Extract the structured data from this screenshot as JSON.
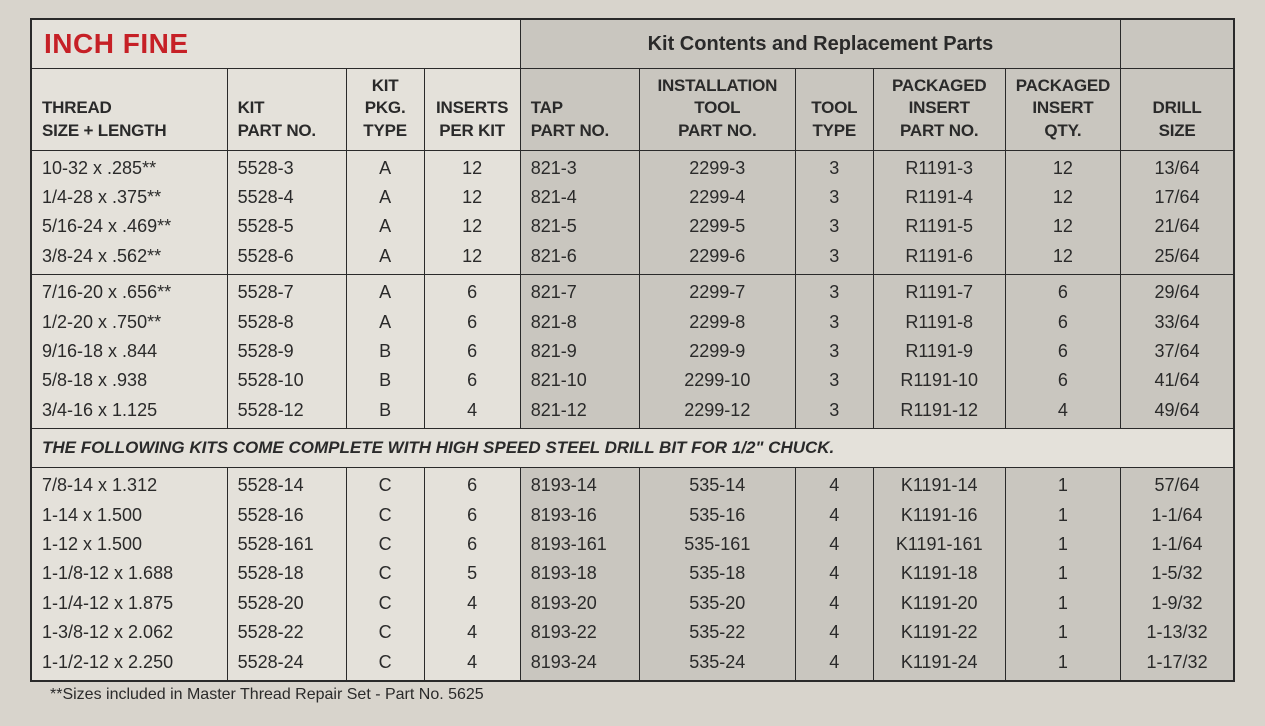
{
  "title": "INCH FINE",
  "kit_header": "Kit Contents and Replacement Parts",
  "columns": {
    "thread": "THREAD\nSIZE + LENGTH",
    "kitpart": "KIT\nPART NO.",
    "kitpkg": "KIT\nPKG.\nTYPE",
    "inserts": "INSERTS\nPER KIT",
    "tap": "TAP\nPART NO.",
    "install": "INSTALLATION\nTOOL\nPART NO.",
    "tooltype": "TOOL\nTYPE",
    "pkgins": "PACKAGED\nINSERT\nPART NO.",
    "pkgqty": "PACKAGED\nINSERT\nQTY.",
    "drill": "DRILL\nSIZE"
  },
  "group1": [
    {
      "thread": "10-32 x .285**",
      "kit": "5528-3",
      "pkg": "A",
      "ins": "12",
      "tap": "821-3",
      "inst": "2299-3",
      "tt": "3",
      "pins": "R1191-3",
      "pq": "12",
      "drill": "13/64"
    },
    {
      "thread": "1/4-28 x .375**",
      "kit": "5528-4",
      "pkg": "A",
      "ins": "12",
      "tap": "821-4",
      "inst": "2299-4",
      "tt": "3",
      "pins": "R1191-4",
      "pq": "12",
      "drill": "17/64"
    },
    {
      "thread": "5/16-24 x .469**",
      "kit": "5528-5",
      "pkg": "A",
      "ins": "12",
      "tap": "821-5",
      "inst": "2299-5",
      "tt": "3",
      "pins": "R1191-5",
      "pq": "12",
      "drill": "21/64"
    },
    {
      "thread": "3/8-24 x .562**",
      "kit": "5528-6",
      "pkg": "A",
      "ins": "12",
      "tap": "821-6",
      "inst": "2299-6",
      "tt": "3",
      "pins": "R1191-6",
      "pq": "12",
      "drill": "25/64"
    }
  ],
  "group2": [
    {
      "thread": "7/16-20 x .656**",
      "kit": "5528-7",
      "pkg": "A",
      "ins": "6",
      "tap": "821-7",
      "inst": "2299-7",
      "tt": "3",
      "pins": "R1191-7",
      "pq": "6",
      "drill": "29/64"
    },
    {
      "thread": "1/2-20 x .750**",
      "kit": "5528-8",
      "pkg": "A",
      "ins": "6",
      "tap": "821-8",
      "inst": "2299-8",
      "tt": "3",
      "pins": "R1191-8",
      "pq": "6",
      "drill": "33/64"
    },
    {
      "thread": "9/16-18 x .844",
      "kit": "5528-9",
      "pkg": "B",
      "ins": "6",
      "tap": "821-9",
      "inst": "2299-9",
      "tt": "3",
      "pins": "R1191-9",
      "pq": "6",
      "drill": "37/64"
    },
    {
      "thread": "5/8-18 x .938",
      "kit": "5528-10",
      "pkg": "B",
      "ins": "6",
      "tap": "821-10",
      "inst": "2299-10",
      "tt": "3",
      "pins": "R1191-10",
      "pq": "6",
      "drill": "41/64"
    },
    {
      "thread": "3/4-16 x 1.125",
      "kit": "5528-12",
      "pkg": "B",
      "ins": "4",
      "tap": "821-12",
      "inst": "2299-12",
      "tt": "3",
      "pins": "R1191-12",
      "pq": "4",
      "drill": "49/64"
    }
  ],
  "banner": "THE FOLLOWING KITS COME COMPLETE WITH HIGH SPEED STEEL DRILL BIT FOR 1/2\" CHUCK.",
  "group3": [
    {
      "thread": "7/8-14 x 1.312",
      "kit": "5528-14",
      "pkg": "C",
      "ins": "6",
      "tap": "8193-14",
      "inst": "535-14",
      "tt": "4",
      "pins": "K1191-14",
      "pq": "1",
      "drill": "57/64"
    },
    {
      "thread": "1-14 x 1.500",
      "kit": "5528-16",
      "pkg": "C",
      "ins": "6",
      "tap": "8193-16",
      "inst": "535-16",
      "tt": "4",
      "pins": "K1191-16",
      "pq": "1",
      "drill": "1-1/64"
    },
    {
      "thread": "1-12 x 1.500",
      "kit": "5528-161",
      "pkg": "C",
      "ins": "6",
      "tap": "8193-161",
      "inst": "535-161",
      "tt": "4",
      "pins": "K1191-161",
      "pq": "1",
      "drill": "1-1/64"
    },
    {
      "thread": "1-1/8-12 x 1.688",
      "kit": "5528-18",
      "pkg": "C",
      "ins": "5",
      "tap": "8193-18",
      "inst": "535-18",
      "tt": "4",
      "pins": "K1191-18",
      "pq": "1",
      "drill": "1-5/32"
    },
    {
      "thread": "1-1/4-12 x 1.875",
      "kit": "5528-20",
      "pkg": "C",
      "ins": "4",
      "tap": "8193-20",
      "inst": "535-20",
      "tt": "4",
      "pins": "K1191-20",
      "pq": "1",
      "drill": "1-9/32"
    },
    {
      "thread": "1-3/8-12 x 2.062",
      "kit": "5528-22",
      "pkg": "C",
      "ins": "4",
      "tap": "8193-22",
      "inst": "535-22",
      "tt": "4",
      "pins": "K1191-22",
      "pq": "1",
      "drill": "1-13/32"
    },
    {
      "thread": "1-1/2-12 x 2.250",
      "kit": "5528-24",
      "pkg": "C",
      "ins": "4",
      "tap": "8193-24",
      "inst": "535-24",
      "tt": "4",
      "pins": "K1191-24",
      "pq": "1",
      "drill": "1-17/32"
    }
  ],
  "footnote": "**Sizes included in Master Thread Repair Set - Part No. 5625",
  "style": {
    "title_color": "#c62026",
    "shaded_bg": "#c9c6bf",
    "plain_bg": "#e4e1da",
    "border_color": "#2a2a2a",
    "col_widths_pct": [
      16.5,
      10,
      6.5,
      8,
      10,
      13,
      6.5,
      11,
      9,
      9.5
    ]
  }
}
